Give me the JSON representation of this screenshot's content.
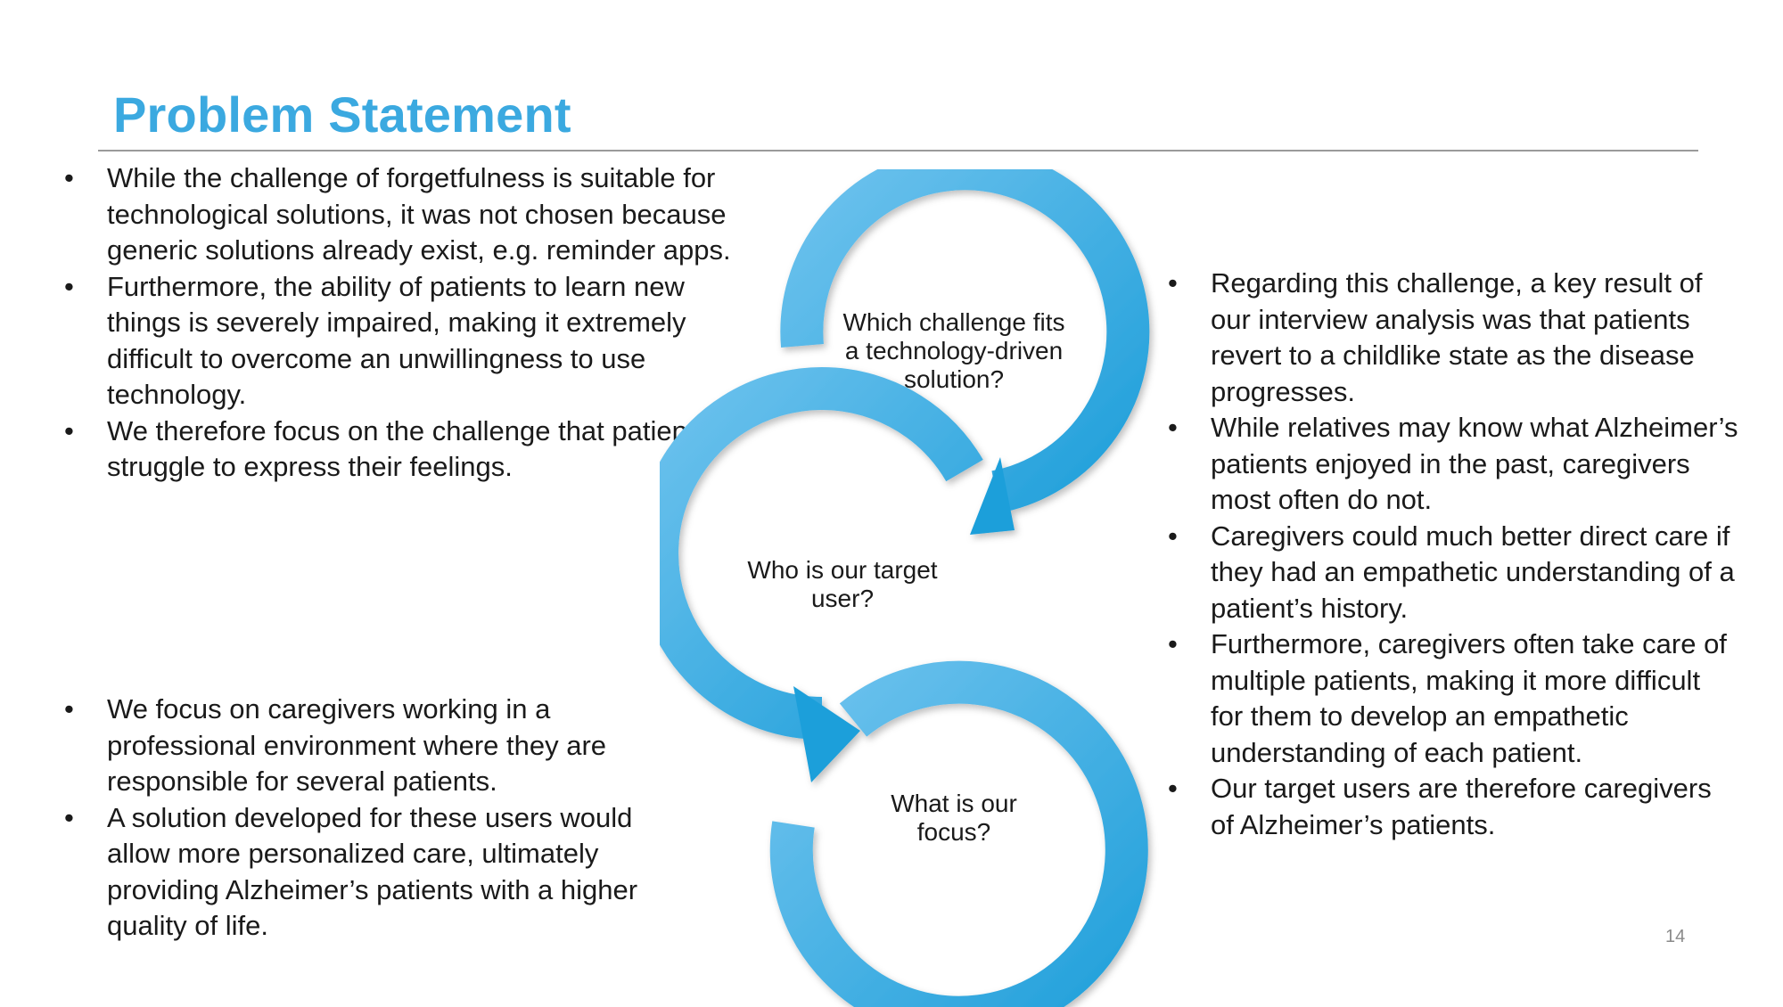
{
  "slide": {
    "title": "Problem Statement",
    "page_number": "14"
  },
  "left_top_bullets": [
    "While the challenge of forgetfulness is suitable for technological solutions, it was not chosen because generic solutions already exist, e.g. reminder apps.",
    "Furthermore, the ability of patients to learn new things is severely impaired, making it extremely difficult to overcome an unwillingness to use technology.",
    "We therefore focus on the challenge that patients struggle to express their feelings."
  ],
  "left_bottom_bullets": [
    "We focus on caregivers working in a professional environment where they are responsible for several patients.",
    "A solution developed for these users would allow more personalized care, ultimately providing Alzheimer’s patients with a higher quality of life."
  ],
  "right_bullets": [
    "Regarding this challenge, a key result of our interview analysis was that patients revert to a childlike state as the disease progresses.",
    "While relatives may know what Alzheimer’s patients enjoyed in the past, caregivers most often do not.",
    "Caregivers could much better direct care if they had an empathetic understanding of a patient’s history.",
    "Furthermore, caregivers often take care of multiple patients, making it more difficult for them to develop an empathetic understanding of each patient.",
    "Our target users are therefore caregivers of Alzheimer’s patients."
  ],
  "diagram": {
    "arrow_color": "#2fa8e0",
    "nodes": [
      "Which challenge fits a technology-driven solution?",
      "Who is our target user?",
      "What is our focus?"
    ]
  }
}
